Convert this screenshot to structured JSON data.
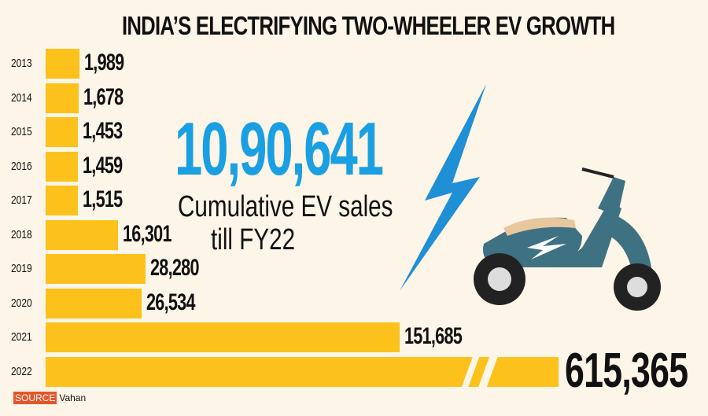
{
  "title": "INDIA’S ELECTRIFYING TWO-WHEELER EV GROWTH",
  "highlight": {
    "value": "10,90,641",
    "line1": "Cumulative EV sales",
    "line2": "till FY22"
  },
  "source": {
    "tag": "SOURCE",
    "name": "Vahan"
  },
  "colors": {
    "bar": "#fcc21b",
    "accent": "#1aa0e2",
    "background": "#fdf5e7",
    "source_tag": "#e4562a"
  },
  "chart_data": {
    "type": "bar",
    "orientation": "horizontal",
    "title": "INDIA’S ELECTRIFYING TWO-WHEELER EV GROWTH",
    "categories": [
      "2013",
      "2014",
      "2015",
      "2016",
      "2017",
      "2018",
      "2019",
      "2020",
      "2021",
      "2022"
    ],
    "values": [
      1989,
      1678,
      1453,
      1459,
      1515,
      16301,
      28280,
      26534,
      151685,
      615365
    ],
    "labels": [
      "1,989",
      "1,678",
      "1,453",
      "1,459",
      "1,515",
      "16,301",
      "28,280",
      "26,534",
      "151,685",
      "615,365"
    ],
    "xlabel": "",
    "ylabel": "",
    "grid": false,
    "broken_bar": "2022"
  }
}
